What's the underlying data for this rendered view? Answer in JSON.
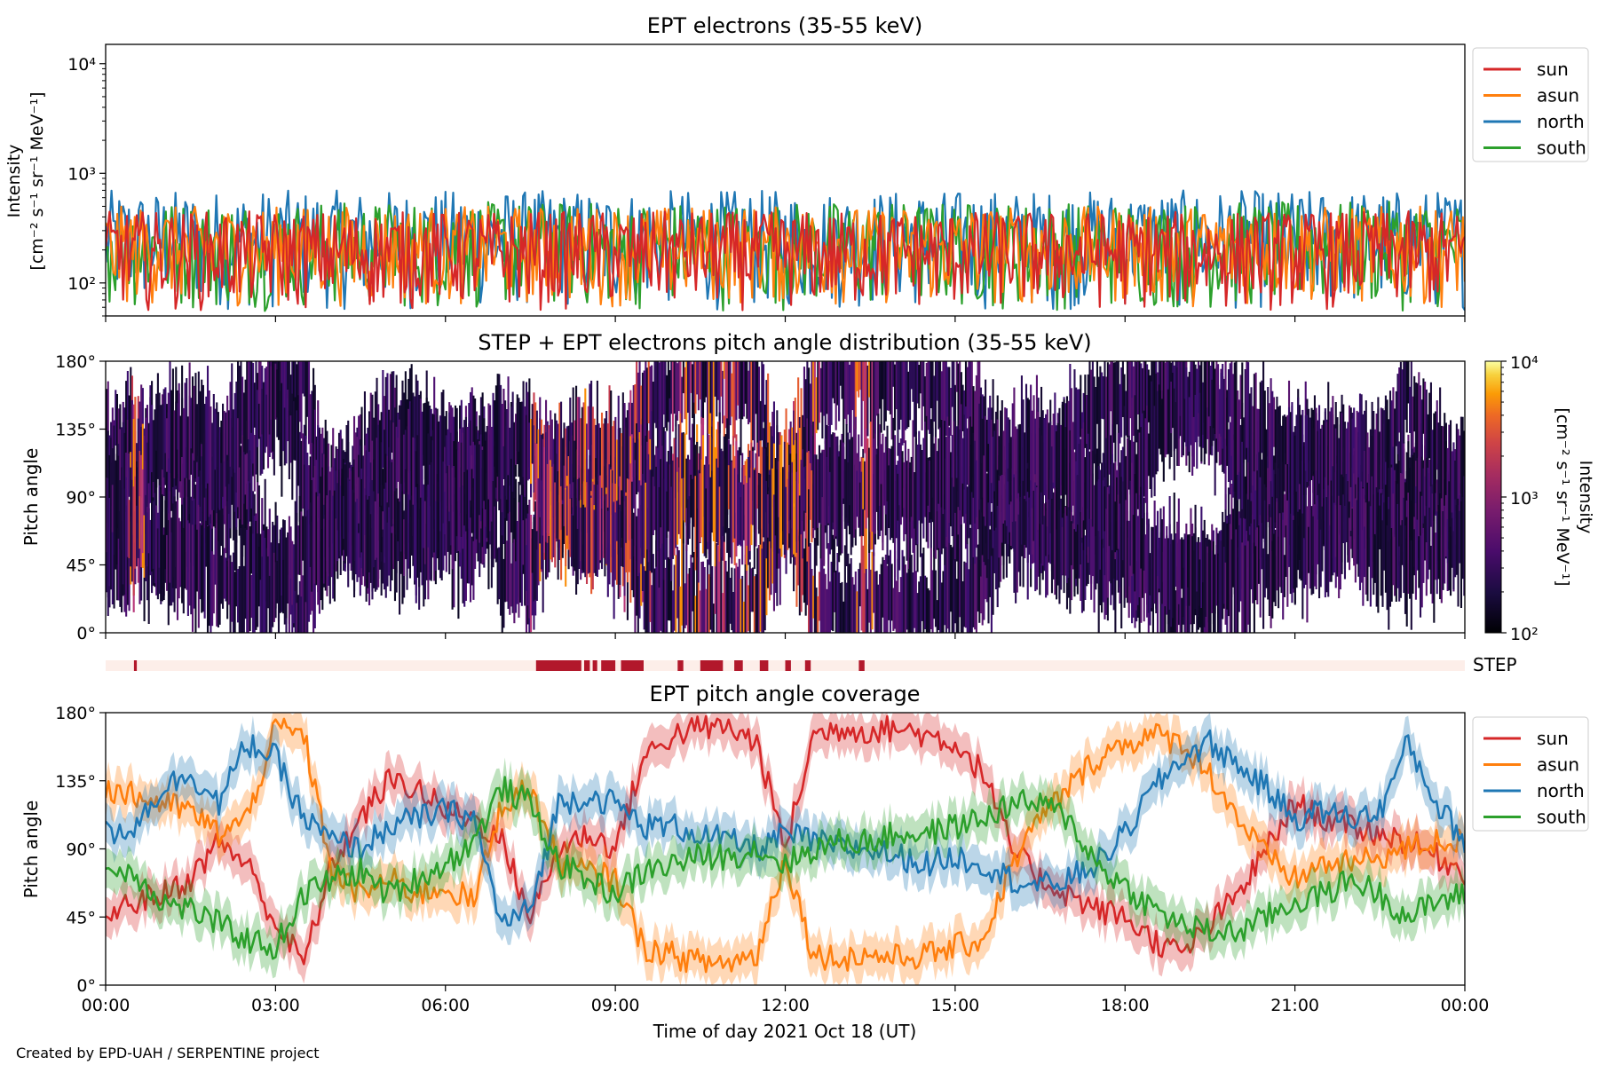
{
  "chart_data": [
    {
      "type": "line",
      "title": "EPT electrons (35-55 keV)",
      "ylabel_line1": "Intensity",
      "ylabel_line2": "[cm⁻² s⁻¹ sr⁻¹ MeV⁻¹]",
      "yscale": "log",
      "ylim": [
        50,
        15000
      ],
      "yticks": [
        {
          "value": 100,
          "label": "10²"
        },
        {
          "value": 1000,
          "label": "10³"
        },
        {
          "value": 10000,
          "label": "10⁴"
        }
      ],
      "xlim_hours": [
        0,
        24
      ],
      "legend_placement": "outside-top-right",
      "series": [
        {
          "name": "sun",
          "color": "#d62728",
          "typical_range": [
            55,
            450
          ]
        },
        {
          "name": "asun",
          "color": "#ff7f0e",
          "typical_range": [
            60,
            500
          ]
        },
        {
          "name": "north",
          "color": "#1f77b4",
          "typical_range": [
            55,
            700
          ]
        },
        {
          "name": "south",
          "color": "#2ca02c",
          "typical_range": [
            55,
            550
          ]
        }
      ]
    },
    {
      "type": "heatmap",
      "title": "STEP + EPT electrons pitch angle distribution (35-55 keV)",
      "ylabel": "Pitch angle",
      "ylim": [
        0,
        180
      ],
      "yticks": [
        {
          "value": 0,
          "label": "0°"
        },
        {
          "value": 45,
          "label": "45°"
        },
        {
          "value": 90,
          "label": "90°"
        },
        {
          "value": 135,
          "label": "135°"
        },
        {
          "value": 180,
          "label": "180°"
        }
      ],
      "xlim_hours": [
        0,
        24
      ],
      "colorbar": {
        "label_line1": "Intensity",
        "label_line2": "[cm⁻² s⁻¹ sr⁻¹ MeV⁻¹]",
        "scale": "log",
        "range": [
          100,
          10000
        ],
        "ticks": [
          {
            "value": 100,
            "label": "10²"
          },
          {
            "value": 1000,
            "label": "10³"
          },
          {
            "value": 10000,
            "label": "10⁴"
          }
        ],
        "colormap": "inferno"
      }
    },
    {
      "type": "timeline",
      "label": "STEP",
      "xlim_hours": [
        0,
        24
      ],
      "on_color": "#b2182b",
      "off_color": "#fdeee9",
      "on_intervals_hours": [
        [
          0.5,
          0.55
        ],
        [
          7.6,
          8.4
        ],
        [
          8.45,
          8.55
        ],
        [
          8.6,
          8.68
        ],
        [
          8.75,
          9.0
        ],
        [
          9.1,
          9.5
        ],
        [
          10.1,
          10.2
        ],
        [
          10.5,
          10.9
        ],
        [
          11.1,
          11.25
        ],
        [
          11.55,
          11.7
        ],
        [
          12.0,
          12.1
        ],
        [
          12.35,
          12.45
        ],
        [
          13.3,
          13.4
        ]
      ]
    },
    {
      "type": "line",
      "title": "EPT pitch angle coverage",
      "ylabel": "Pitch angle",
      "xlabel": "Time of day 2021 Oct 18 (UT)",
      "ylim": [
        0,
        180
      ],
      "yticks": [
        {
          "value": 0,
          "label": "0°"
        },
        {
          "value": 45,
          "label": "45°"
        },
        {
          "value": 90,
          "label": "90°"
        },
        {
          "value": 135,
          "label": "135°"
        },
        {
          "value": 180,
          "label": "180°"
        }
      ],
      "xlim_hours": [
        0,
        24
      ],
      "xticks": [
        {
          "value": 0,
          "label": "00:00"
        },
        {
          "value": 3,
          "label": "03:00"
        },
        {
          "value": 6,
          "label": "06:00"
        },
        {
          "value": 9,
          "label": "09:00"
        },
        {
          "value": 12,
          "label": "12:00"
        },
        {
          "value": 15,
          "label": "15:00"
        },
        {
          "value": 18,
          "label": "18:00"
        },
        {
          "value": 21,
          "label": "21:00"
        },
        {
          "value": 24,
          "label": "00:00"
        }
      ],
      "legend_placement": "outside-top-right",
      "x_hours": [
        0,
        0.5,
        1,
        1.5,
        2,
        2.5,
        3,
        3.5,
        4,
        4.5,
        5,
        5.5,
        6,
        6.5,
        7,
        7.5,
        8,
        8.5,
        9,
        9.5,
        10,
        10.5,
        11,
        11.5,
        12,
        12.5,
        13,
        13.5,
        14,
        14.5,
        15,
        15.5,
        16,
        16.5,
        17,
        17.5,
        18,
        18.5,
        19,
        19.5,
        20,
        20.5,
        21,
        21.5,
        22,
        22.5,
        23,
        23.5,
        24
      ],
      "series": [
        {
          "name": "sun",
          "color": "#d62728",
          "band_halfwidth": 13,
          "values": [
            45,
            55,
            60,
            70,
            95,
            80,
            40,
            15,
            80,
            110,
            135,
            130,
            115,
            110,
            95,
            45,
            90,
            100,
            90,
            150,
            165,
            170,
            170,
            160,
            90,
            165,
            170,
            168,
            170,
            165,
            160,
            140,
            90,
            70,
            60,
            50,
            45,
            30,
            20,
            40,
            60,
            90,
            120,
            110,
            105,
            100,
            95,
            85,
            75
          ]
        },
        {
          "name": "asun",
          "color": "#ff7f0e",
          "band_halfwidth": 13,
          "values": [
            130,
            125,
            120,
            115,
            100,
            110,
            170,
            165,
            75,
            60,
            70,
            60,
            65,
            55,
            120,
            130,
            80,
            75,
            70,
            25,
            20,
            15,
            15,
            20,
            85,
            20,
            18,
            20,
            18,
            20,
            25,
            30,
            80,
            110,
            130,
            150,
            160,
            165,
            160,
            140,
            110,
            85,
            70,
            80,
            80,
            85,
            90,
            95,
            95
          ]
        },
        {
          "name": "north",
          "color": "#1f77b4",
          "band_halfwidth": 13,
          "values": [
            100,
            105,
            130,
            140,
            120,
            160,
            150,
            110,
            95,
            90,
            105,
            110,
            115,
            110,
            40,
            50,
            120,
            125,
            120,
            105,
            105,
            100,
            95,
            90,
            100,
            95,
            90,
            90,
            85,
            80,
            85,
            80,
            70,
            65,
            70,
            80,
            100,
            130,
            150,
            160,
            145,
            130,
            110,
            115,
            110,
            115,
            160,
            120,
            95
          ]
        },
        {
          "name": "south",
          "color": "#2ca02c",
          "band_halfwidth": 13,
          "values": [
            75,
            75,
            55,
            50,
            40,
            30,
            25,
            60,
            70,
            75,
            60,
            70,
            80,
            95,
            130,
            120,
            80,
            70,
            60,
            75,
            80,
            85,
            85,
            90,
            80,
            90,
            95,
            95,
            100,
            100,
            105,
            110,
            120,
            120,
            110,
            80,
            65,
            50,
            40,
            35,
            35,
            45,
            55,
            60,
            70,
            60,
            45,
            55,
            60
          ]
        }
      ]
    }
  ],
  "footer": {
    "credit": "Created by EPD-UAH / SERPENTINE project"
  }
}
